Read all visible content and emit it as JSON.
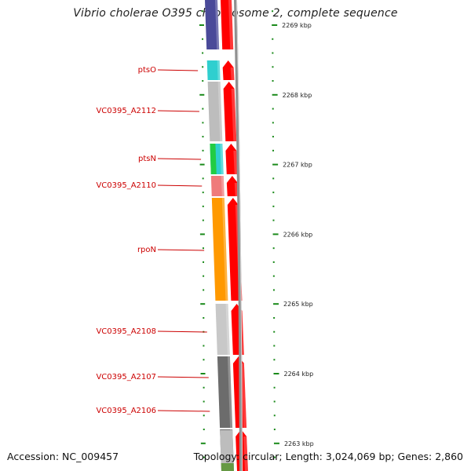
{
  "title": "Vibrio cholerae O395 chromosome 2, complete sequence",
  "footer": {
    "accession": "Accession: NC_009457",
    "summary": "Topology: circular; Length: 3,024,069 bp; Genes: 2,860"
  },
  "scale": {
    "unit": "kbp",
    "labels": [
      "2269 kbp",
      "2268 kbp",
      "2267 kbp",
      "2266 kbp",
      "2265 kbp",
      "2264 kbp",
      "2263 kbp"
    ],
    "major_kbp": [
      2269,
      2268,
      2267,
      2266,
      2265,
      2264,
      2263
    ]
  },
  "genes": [
    {
      "label": "",
      "color": "#4a4a99"
    },
    {
      "label": "ptsO",
      "color": "#2fcfcf"
    },
    {
      "label": "VC0395_A2112",
      "color": "#bdbdbd"
    },
    {
      "label": "ptsN",
      "color": "#2fcfcf",
      "second_color": "#22cc44"
    },
    {
      "label": "VC0395_A2110",
      "color": "#ef7b7b"
    },
    {
      "label": "rpoN",
      "color": "#ff9900"
    },
    {
      "label": "VC0395_A2108",
      "color": "#c8c8c8"
    },
    {
      "label": "VC0395_A2107",
      "color": "#6c6c6c"
    },
    {
      "label": "VC0395_A2106",
      "color": "#6c6c6c"
    },
    {
      "label": "",
      "color": "#bdbdbd"
    }
  ],
  "colors": {
    "strand_arrows": "#ff0000",
    "backbone": "#909090",
    "ticks": "#1a8a1a",
    "gene_labels": "#cc0000"
  }
}
